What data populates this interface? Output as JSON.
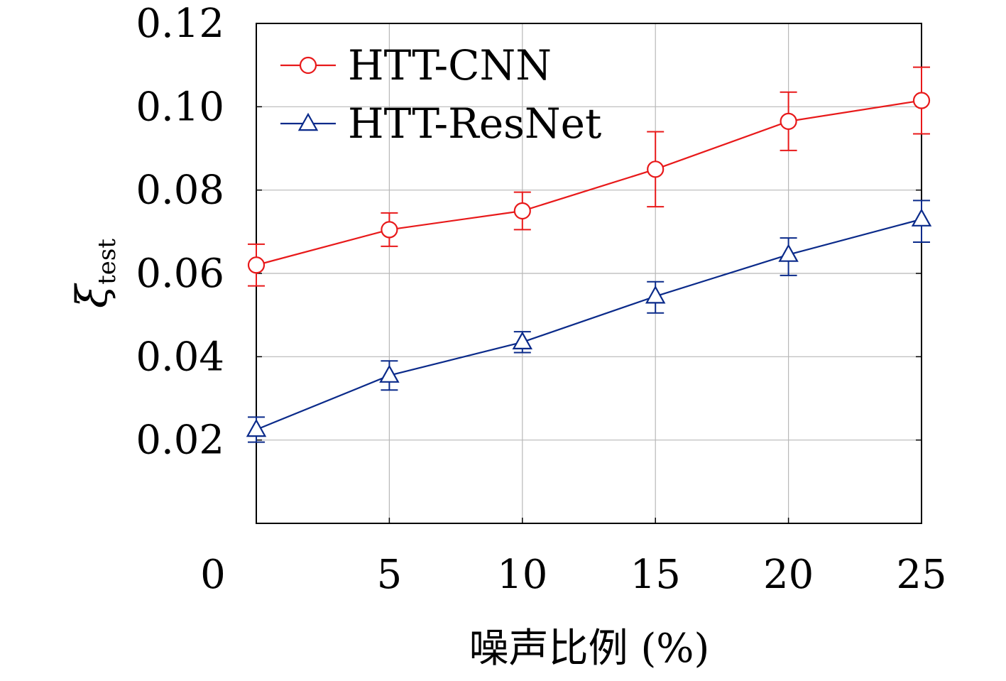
{
  "chart_data": {
    "type": "line",
    "xlabel": "噪声比例 (%)",
    "ylabel": "ξ",
    "ylabel_subscript": "test",
    "x_ticks": [
      "0",
      "5",
      "10",
      "15",
      "20",
      "25"
    ],
    "y_ticks": [
      "0.02",
      "0.04",
      "0.06",
      "0.08",
      "0.10",
      "0.12"
    ],
    "xlim": [
      0,
      25
    ],
    "ylim": [
      0,
      0.12
    ],
    "x_data_range": [
      0,
      25
    ],
    "grid": true,
    "legend_position": "top-left",
    "x": [
      0,
      5,
      10,
      15,
      20,
      25
    ],
    "series": [
      {
        "name": "HTT-CNN",
        "color": "#e8191a",
        "marker": "circle",
        "values": [
          0.062,
          0.0705,
          0.075,
          0.085,
          0.0965,
          0.1015
        ],
        "err_low": [
          0.057,
          0.0665,
          0.0705,
          0.076,
          0.0895,
          0.0935
        ],
        "err_high": [
          0.067,
          0.0745,
          0.0795,
          0.094,
          0.1035,
          0.1095
        ]
      },
      {
        "name": "HTT-ResNet",
        "color": "#0a2a8a",
        "marker": "triangle",
        "values": [
          0.0225,
          0.0355,
          0.0435,
          0.0545,
          0.0645,
          0.073
        ],
        "err_low": [
          0.0195,
          0.032,
          0.041,
          0.0505,
          0.0595,
          0.0675
        ],
        "err_high": [
          0.0255,
          0.039,
          0.046,
          0.058,
          0.0685,
          0.0775
        ]
      }
    ]
  }
}
